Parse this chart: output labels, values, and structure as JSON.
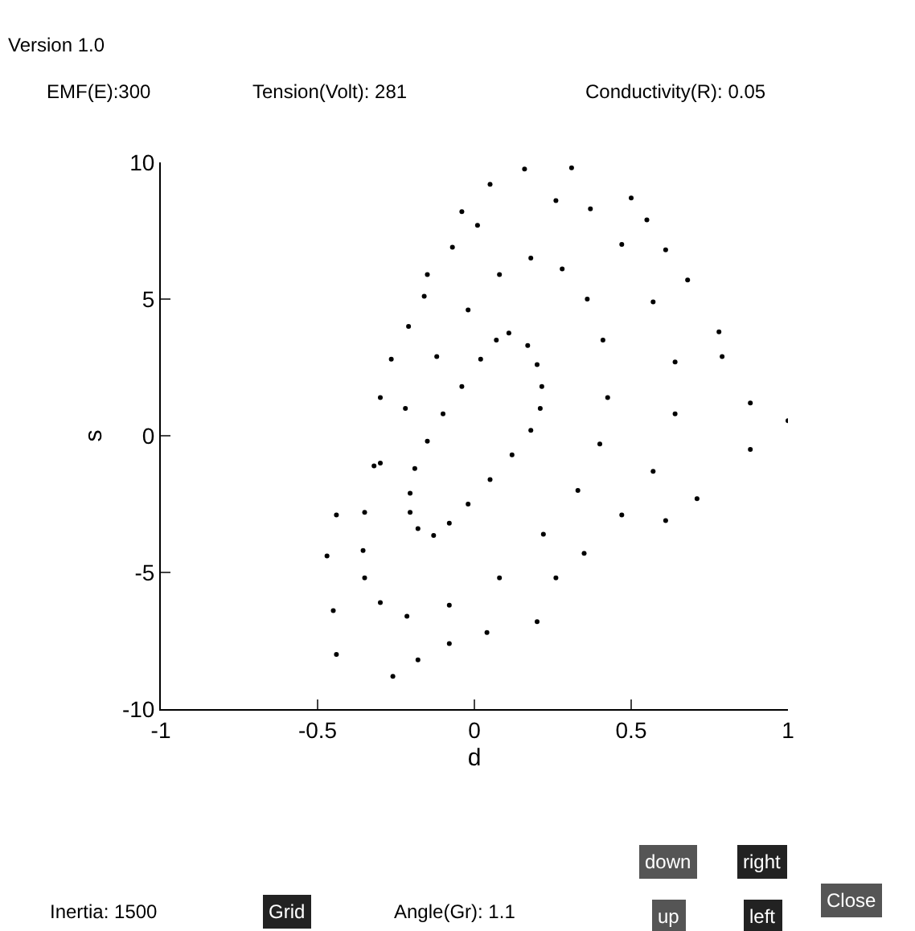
{
  "chart_data": {
    "type": "scatter",
    "xlabel": "d",
    "ylabel": "s",
    "xlim": [
      -1,
      1
    ],
    "xticks": [
      -1,
      -0.5,
      0,
      0.5,
      1
    ],
    "ylim": [
      -10,
      10
    ],
    "yticks": [
      -10,
      -5,
      0,
      5,
      10
    ],
    "marker": "circle",
    "annotations": [
      "Version 1.0",
      "EMF(E):300",
      "Tension(Volt): 281",
      "Conductivity(R): 0.05",
      "Inertia: 1500",
      "Grid",
      "Angle(Gr): 1.1",
      "down",
      "right",
      "up",
      "left",
      "Close"
    ],
    "series": [
      {
        "color": "#000000",
        "x": [
          0.11,
          0.17,
          0.2,
          0.215,
          0.21,
          0.18,
          0.12,
          0.05,
          -0.02,
          -0.08,
          -0.13,
          -0.18,
          -0.205,
          -0.205,
          -0.19,
          -0.15,
          -0.1,
          -0.04,
          0.02,
          0.07
        ],
        "values": [
          3.76,
          3.3,
          2.6,
          1.8,
          1.0,
          0.2,
          -0.7,
          -1.6,
          -2.5,
          -3.2,
          -3.65,
          -3.4,
          -2.8,
          -2.1,
          -1.2,
          -0.2,
          0.8,
          1.8,
          2.8,
          3.5
        ]
      },
      {
        "color": "#000000",
        "x": [
          0.18,
          0.28,
          0.36,
          0.41,
          0.425,
          0.4,
          0.33,
          0.22,
          0.08,
          -0.08,
          -0.215,
          -0.3,
          -0.35,
          -0.355,
          -0.35,
          -0.3,
          -0.22,
          -0.12,
          -0.02,
          0.08
        ],
        "values": [
          6.5,
          6.1,
          5.0,
          3.5,
          1.4,
          -0.3,
          -2.0,
          -3.6,
          -5.2,
          -6.2,
          -6.6,
          -6.1,
          -5.2,
          -4.2,
          -2.8,
          -1.0,
          1.0,
          2.9,
          4.6,
          5.9
        ]
      },
      {
        "color": "#000000",
        "x": [
          0.16,
          0.31,
          0.05,
          -0.04,
          0.01,
          -0.07,
          -0.15,
          -0.16,
          -0.21,
          -0.265,
          -0.3,
          -0.32,
          -0.44,
          -0.47,
          -0.45,
          -0.44,
          -0.26,
          -0.18,
          -0.08,
          0.04,
          0.2,
          0.26,
          0.35,
          0.47,
          0.61,
          0.71,
          0.88,
          1.0,
          0.88,
          0.79,
          0.78,
          0.68,
          0.61,
          0.55,
          0.47,
          0.37,
          0.26,
          0.57,
          0.64,
          0.64,
          0.57,
          0.5
        ],
        "values": [
          9.76,
          9.8,
          9.2,
          8.2,
          7.7,
          6.9,
          5.9,
          5.1,
          4.0,
          2.8,
          1.4,
          -1.1,
          -2.9,
          -4.4,
          -6.4,
          -8.0,
          -8.8,
          -8.2,
          -7.6,
          -7.2,
          -6.8,
          -5.2,
          -4.3,
          -2.9,
          -3.1,
          -2.3,
          -0.5,
          0.55,
          1.2,
          2.9,
          3.8,
          5.7,
          6.8,
          7.9,
          7.0,
          8.3,
          8.6,
          4.9,
          2.7,
          0.8,
          -1.3,
          8.7
        ]
      }
    ]
  }
}
